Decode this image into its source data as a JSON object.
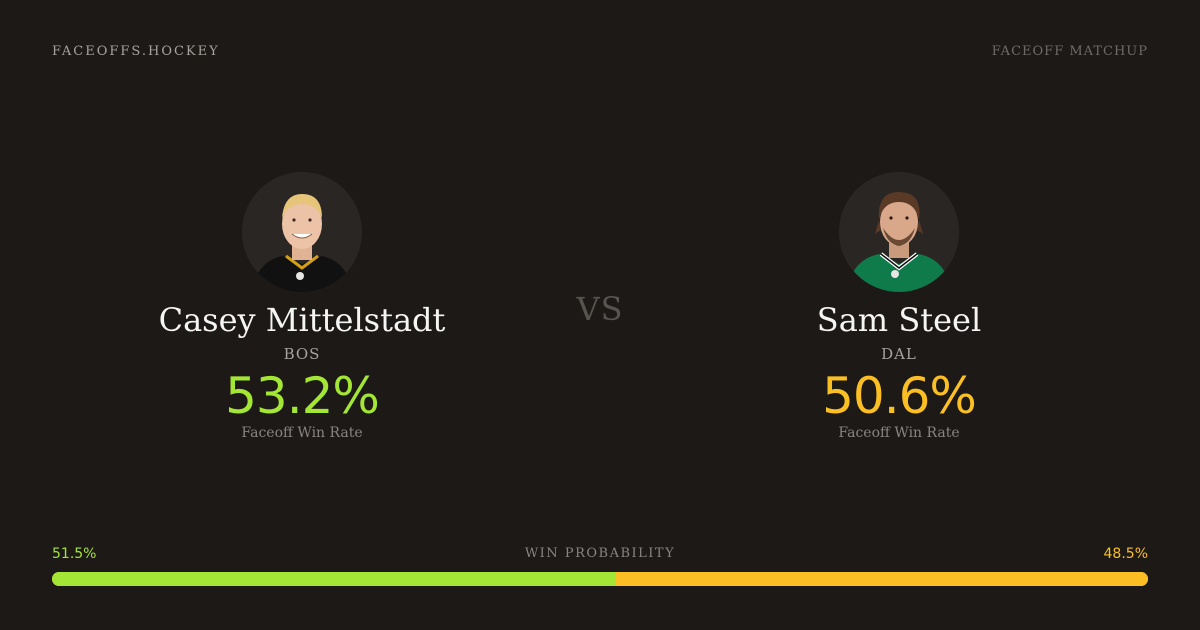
{
  "header": {
    "brand": "FACEOFFS.HOCKEY",
    "tag": "FACEOFF MATCHUP"
  },
  "vs_label": "VS",
  "players": {
    "left": {
      "name": "Casey Mittelstadt",
      "team": "BOS",
      "win_rate": "53.2%",
      "win_rate_label": "Faceoff Win Rate",
      "jersey_color": "#111111",
      "accent_color": "#a3e635"
    },
    "right": {
      "name": "Sam Steel",
      "team": "DAL",
      "win_rate": "50.6%",
      "win_rate_label": "Faceoff Win Rate",
      "jersey_color": "#0f7a4a",
      "accent_color": "#fbbf24"
    }
  },
  "probability": {
    "title": "WIN PROBABILITY",
    "left_label": "51.5%",
    "right_label": "48.5%",
    "left_value": 51.5,
    "right_value": 48.5
  }
}
